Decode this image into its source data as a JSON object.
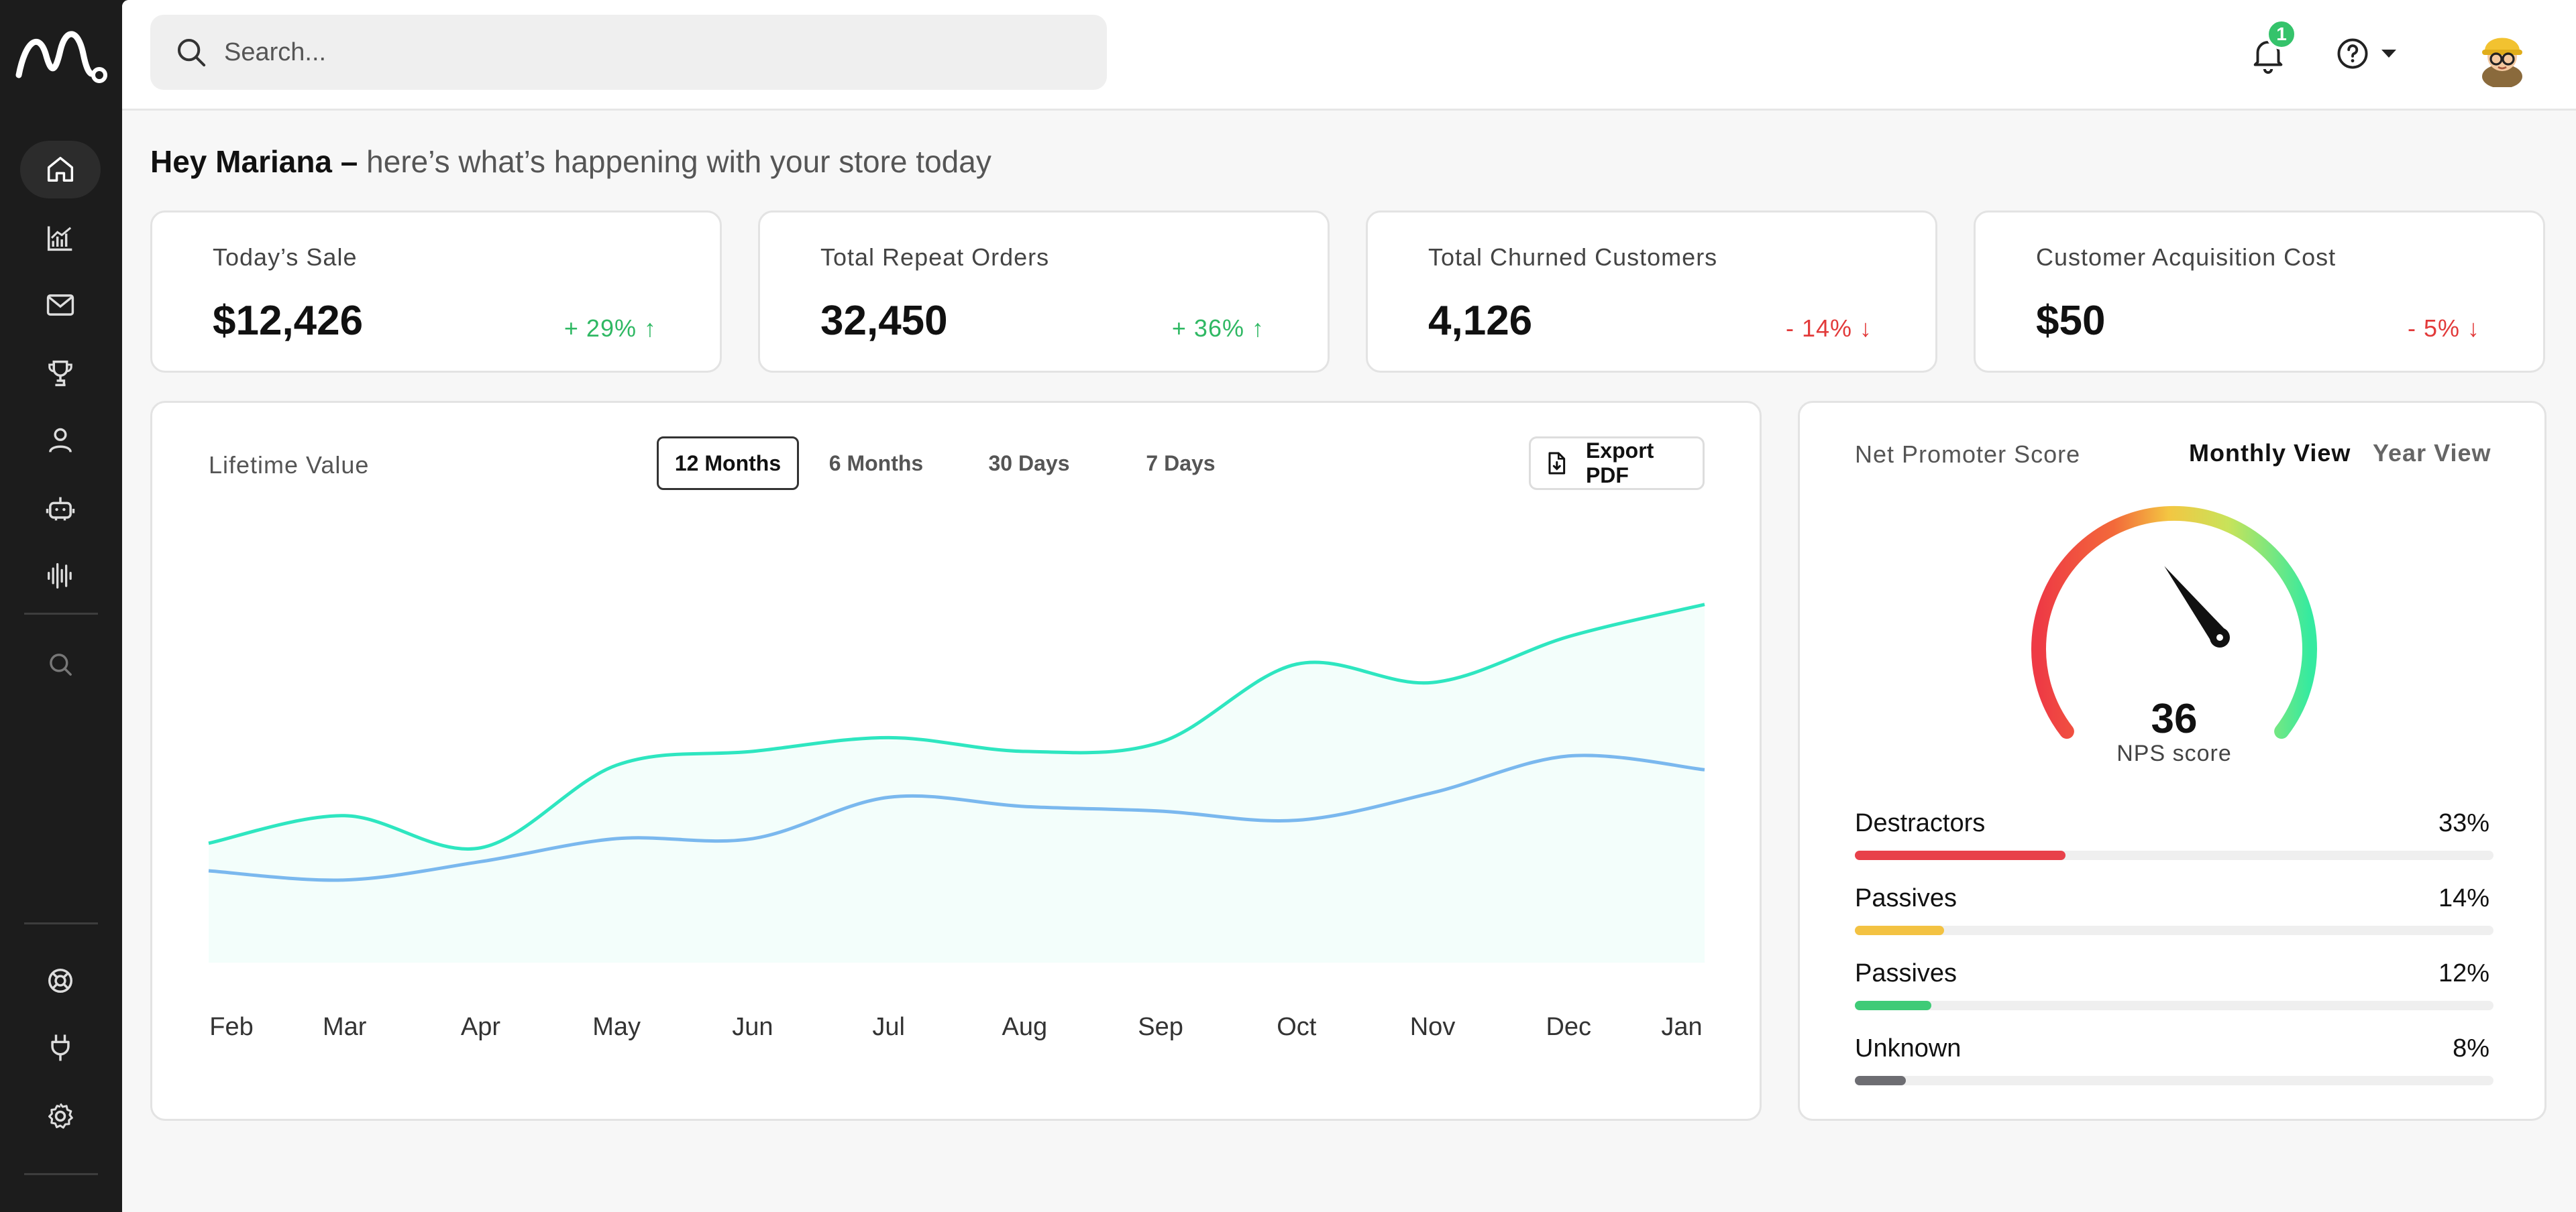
{
  "sidebar": {
    "logo_icon": "brand-logo-m",
    "items": [
      {
        "icon": "home-icon",
        "active": true
      },
      {
        "icon": "analytics-icon"
      },
      {
        "icon": "mail-icon"
      },
      {
        "icon": "trophy-icon"
      },
      {
        "icon": "user-icon"
      },
      {
        "icon": "bot-icon"
      },
      {
        "icon": "audio-wave-icon"
      },
      {
        "icon": "search-icon"
      }
    ],
    "bottom_items": [
      {
        "icon": "support-icon"
      },
      {
        "icon": "plug-icon"
      },
      {
        "icon": "settings-icon"
      }
    ]
  },
  "topbar": {
    "search_placeholder": "Search...",
    "notification_count": "1",
    "icons": [
      "bell-icon",
      "help-icon",
      "avatar"
    ]
  },
  "greeting": {
    "name": "Hey Mariana –",
    "subtitle": "here’s what’s happening with your store today"
  },
  "kpis": [
    {
      "title": "Today’s Sale",
      "value": "$12,426",
      "change": "+ 29% ↑",
      "trend": "up"
    },
    {
      "title": "Total Repeat Orders",
      "value": "32,450",
      "change": "+ 36% ↑",
      "trend": "up"
    },
    {
      "title": "Total Churned Customers",
      "value": "4,126",
      "change": "- 14% ↓",
      "trend": "down"
    },
    {
      "title": "Customer Acquisition Cost",
      "value": "$50",
      "change": "- 5% ↓",
      "trend": "down"
    }
  ],
  "lifetime_value": {
    "title": "Lifetime Value",
    "tabs": [
      "12 Months",
      "6 Months",
      "30 Days",
      "7 Days"
    ],
    "active_tab": "12 Months",
    "export_label": "Export PDF"
  },
  "chart_data": {
    "type": "area",
    "title": "Lifetime Value",
    "xlabel": "",
    "ylabel": "",
    "categories": [
      "Feb",
      "Mar",
      "Apr",
      "May",
      "Jun",
      "Jul",
      "Aug",
      "Sep",
      "Oct",
      "Nov",
      "Dec",
      "Jan"
    ],
    "ylim": [
      0,
      100
    ],
    "grid": false,
    "legend": "none",
    "series": [
      {
        "color": "#2ee6c0",
        "fill": true,
        "values": [
          26,
          32,
          25,
          43,
          46,
          49,
          46,
          48,
          65,
          61,
          71,
          78
        ]
      },
      {
        "color": "#7ab8ee",
        "values": [
          20,
          18,
          22,
          27,
          27,
          36,
          34,
          33,
          31,
          37,
          45,
          42
        ]
      }
    ]
  },
  "nps": {
    "title": "Net Promoter Score",
    "view_monthly": "Monthly View",
    "view_year": "Year View",
    "score": "36",
    "score_label": "NPS score",
    "score_fraction": 0.36,
    "breakdown": [
      {
        "label": "Destractors",
        "pct": "33%",
        "value": 0.33,
        "color": "#e8414a"
      },
      {
        "label": "Passives",
        "pct": "14%",
        "value": 0.14,
        "color": "#f3c242"
      },
      {
        "label": "Passives",
        "pct": "12%",
        "value": 0.12,
        "color": "#3fcb77"
      },
      {
        "label": "Unknown",
        "pct": "8%",
        "value": 0.08,
        "color": "#6d6d72"
      }
    ]
  },
  "colors": {
    "sidebar_bg": "#1c1c1c",
    "accent_teal": "#2ee6c0",
    "accent_blue": "#7ab8ee",
    "positive": "#2fb863",
    "negative": "#e23a3a"
  }
}
